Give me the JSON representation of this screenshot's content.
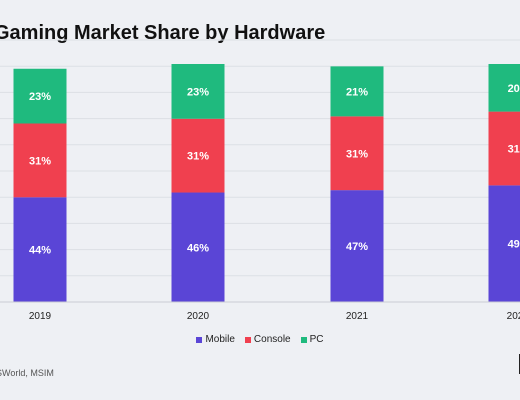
{
  "title": "Gaming Market Share by Hardware",
  "source": "SWorld, MSIM",
  "colors": {
    "Mobile": "#5a45d6",
    "Console": "#f0404f",
    "PC": "#1fba7e"
  },
  "chart_data": {
    "type": "bar",
    "stacked": true,
    "title": "Gaming Market Share by Hardware",
    "categories": [
      "2019",
      "2020",
      "2021",
      "202"
    ],
    "series": [
      {
        "name": "Mobile",
        "values": [
          44,
          46,
          47,
          49
        ],
        "labels": [
          "44%",
          "46%",
          "47%",
          "49'"
        ]
      },
      {
        "name": "Console",
        "values": [
          31,
          31,
          31,
          31
        ],
        "labels": [
          "31%",
          "31%",
          "31%",
          "31'"
        ]
      },
      {
        "name": "PC",
        "values": [
          23,
          23,
          21,
          20
        ],
        "labels": [
          "23%",
          "23%",
          "21%",
          "20'"
        ]
      }
    ],
    "ylim": [
      0,
      100
    ],
    "grid": true,
    "legend": "bottom"
  }
}
